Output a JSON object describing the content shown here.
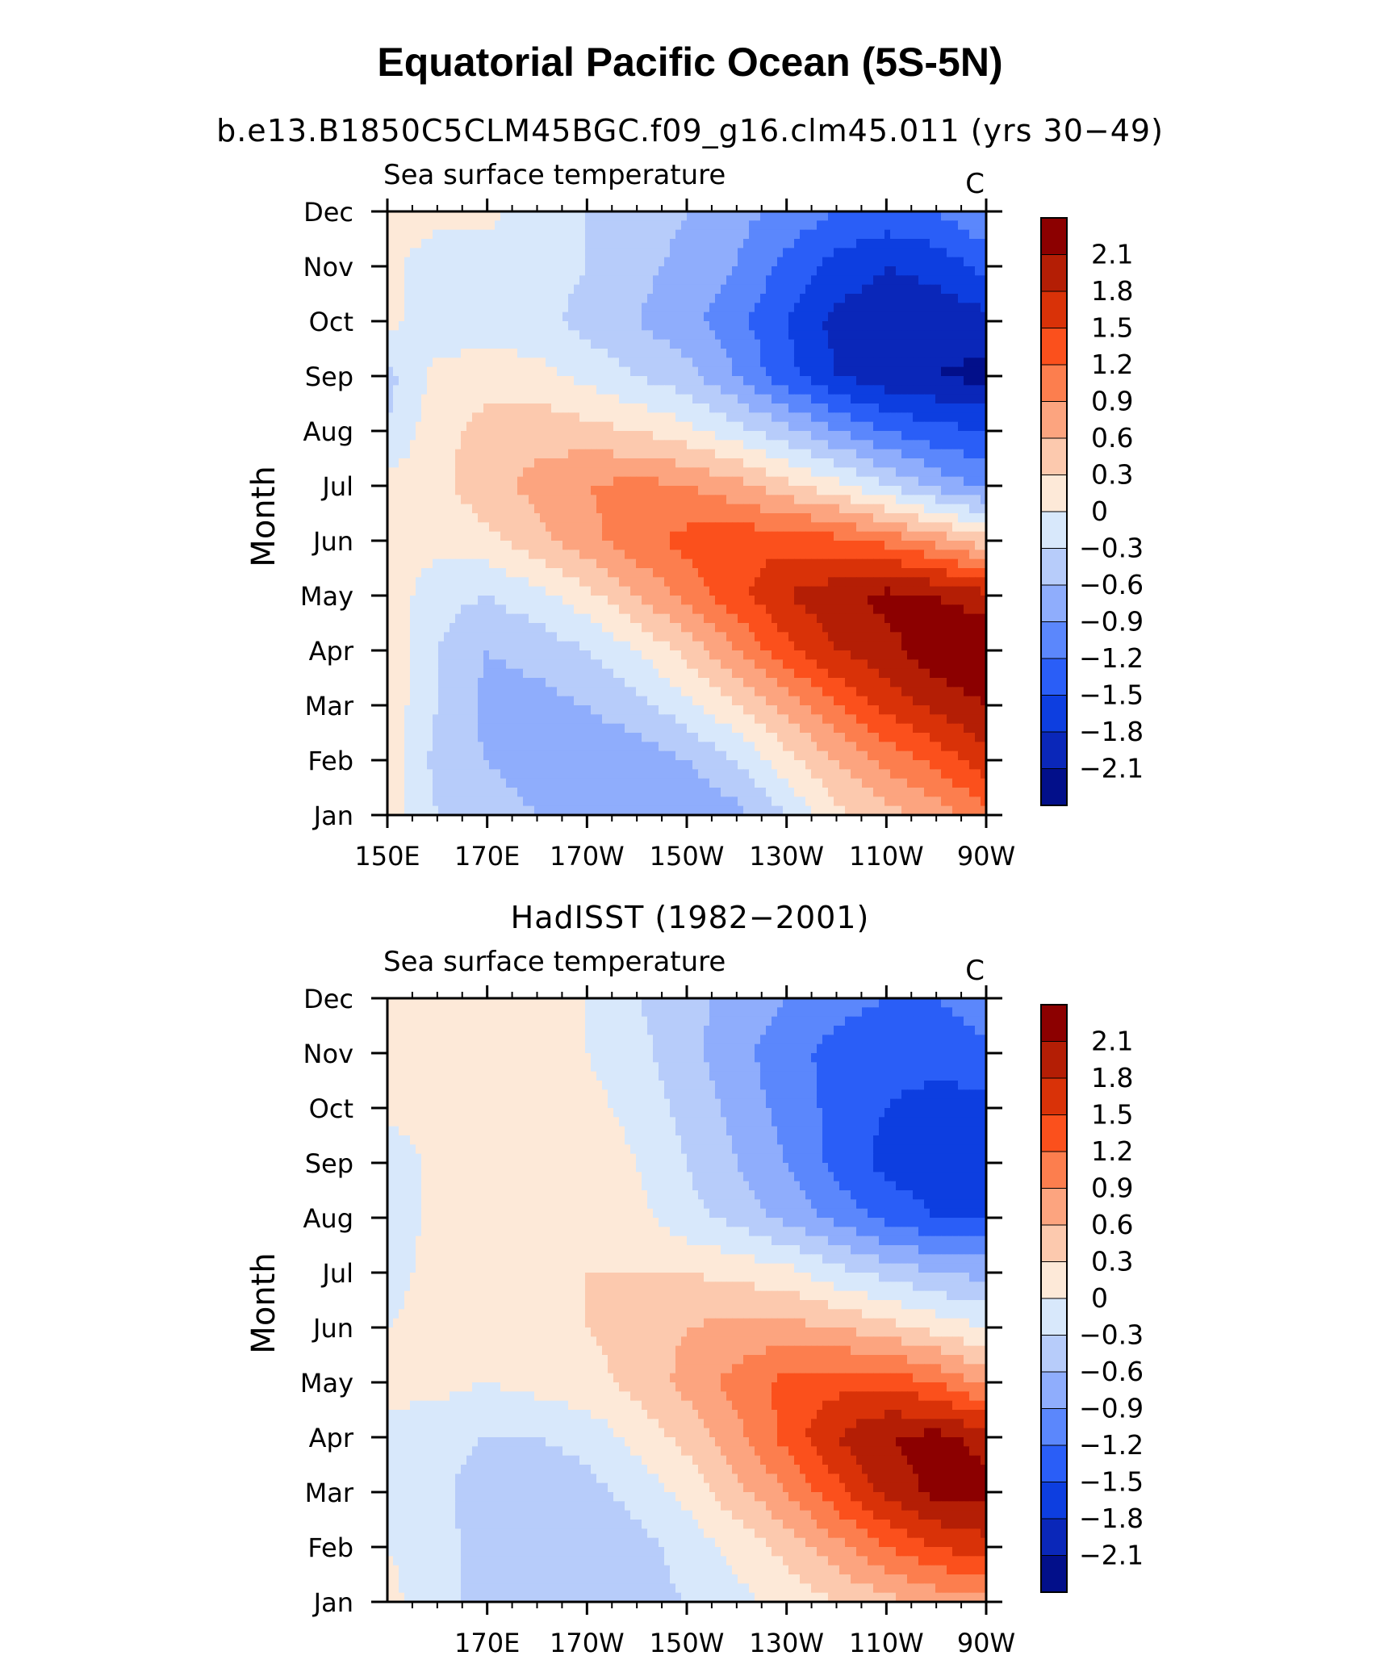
{
  "title": "Equatorial Pacific Ocean (5S-5N)",
  "chart_data": [
    {
      "type": "heatmap",
      "title": "b.e13.B1850C5CLM45BGC.f09_g16.clm45.011 (yrs 30−49)",
      "left_string": "Sea surface temperature",
      "right_string": "C",
      "xlabel": "",
      "ylabel": "Month",
      "xlim": [
        150,
        270
      ],
      "x_ticks": [
        150,
        170,
        190,
        210,
        230,
        250,
        270
      ],
      "x_tick_labels": [
        "150E",
        "170E",
        "170W",
        "150W",
        "130W",
        "110W",
        "90W"
      ],
      "months": [
        "Jan",
        "Feb",
        "Mar",
        "Apr",
        "May",
        "Jun",
        "Jul",
        "Aug",
        "Sep",
        "Oct",
        "Nov",
        "Dec"
      ],
      "lon": [
        150,
        160,
        170,
        180,
        190,
        200,
        210,
        220,
        230,
        240,
        250,
        260,
        270
      ],
      "values": [
        [
          0.2,
          -0.3,
          -0.5,
          -0.6,
          -0.6,
          -0.6,
          -0.9,
          -0.7,
          -0.3,
          0.2,
          0.5,
          0.7,
          1.1
        ],
        [
          0.2,
          -0.4,
          -0.6,
          -0.7,
          -0.8,
          -0.8,
          -0.6,
          -0.3,
          0.2,
          0.6,
          1.0,
          1.3,
          1.7
        ],
        [
          0.2,
          -0.3,
          -0.7,
          -0.7,
          -0.6,
          -0.4,
          -0.1,
          0.3,
          0.7,
          1.2,
          1.6,
          1.9,
          2.1
        ],
        [
          0.2,
          -0.3,
          -0.6,
          -0.5,
          -0.3,
          0.0,
          0.4,
          0.9,
          1.4,
          1.8,
          2.0,
          2.3,
          2.5
        ],
        [
          0.2,
          -0.2,
          -0.3,
          -0.1,
          0.2,
          0.6,
          1.0,
          1.4,
          1.8,
          2.0,
          2.2,
          2.1,
          1.9
        ],
        [
          0.1,
          0.1,
          0.2,
          0.5,
          0.8,
          1.1,
          1.3,
          1.4,
          1.4,
          1.3,
          1.1,
          0.8,
          0.4
        ],
        [
          0.1,
          0.2,
          0.5,
          0.7,
          0.9,
          1.0,
          0.9,
          0.7,
          0.4,
          0.1,
          -0.3,
          -0.7,
          -1.0
        ],
        [
          -0.3,
          0.2,
          0.4,
          0.5,
          0.4,
          0.3,
          0.1,
          -0.2,
          -0.5,
          -0.9,
          -1.2,
          -1.4,
          -1.5
        ],
        [
          -0.4,
          0.1,
          0.2,
          0.1,
          -0.1,
          -0.3,
          -0.5,
          -0.9,
          -1.4,
          -1.8,
          -2.0,
          -2.1,
          -2.2
        ],
        [
          0.1,
          -0.2,
          -0.2,
          -0.2,
          -0.4,
          -0.6,
          -0.8,
          -1.1,
          -1.5,
          -1.9,
          -2.0,
          -2.0,
          -1.9
        ],
        [
          0.1,
          -0.2,
          -0.2,
          -0.2,
          -0.3,
          -0.5,
          -0.7,
          -0.9,
          -1.3,
          -1.6,
          -1.8,
          -1.7,
          -1.4
        ],
        [
          0.2,
          0.1,
          0.1,
          -0.2,
          -0.3,
          -0.4,
          -0.6,
          -0.8,
          -1.0,
          -1.2,
          -1.3,
          -1.2,
          -0.9
        ]
      ]
    },
    {
      "type": "heatmap",
      "title": "HadISST (1982−2001)",
      "left_string": "Sea surface temperature",
      "right_string": "C",
      "xlabel": "",
      "ylabel": "Month",
      "xlim": [
        150,
        270
      ],
      "x_ticks": [
        170,
        190,
        210,
        230,
        250,
        270
      ],
      "x_tick_labels": [
        "170E",
        "170W",
        "150W",
        "130W",
        "110W",
        "90W"
      ],
      "months": [
        "Jan",
        "Feb",
        "Mar",
        "Apr",
        "May",
        "Jun",
        "Jul",
        "Aug",
        "Sep",
        "Oct",
        "Nov",
        "Dec"
      ],
      "lon": [
        150,
        160,
        170,
        180,
        190,
        200,
        210,
        220,
        230,
        240,
        250,
        260,
        270
      ],
      "values": [
        [
          0.1,
          -0.2,
          -0.4,
          -0.5,
          -0.5,
          -0.4,
          -0.3,
          -0.1,
          0.1,
          0.3,
          0.5,
          0.7,
          0.8
        ],
        [
          0.0,
          -0.2,
          -0.4,
          -0.5,
          -0.5,
          -0.4,
          -0.2,
          0.1,
          0.4,
          0.8,
          1.2,
          1.5,
          1.7
        ],
        [
          -0.1,
          -0.2,
          -0.5,
          -0.5,
          -0.4,
          -0.2,
          0.1,
          0.5,
          0.9,
          1.4,
          1.9,
          2.2,
          2.2
        ],
        [
          -0.1,
          -0.2,
          -0.3,
          -0.3,
          -0.2,
          0.1,
          0.4,
          0.8,
          1.3,
          1.8,
          2.1,
          2.2,
          2.0
        ],
        [
          0.1,
          0.1,
          0.0,
          0.1,
          0.2,
          0.4,
          0.7,
          1.0,
          1.3,
          1.4,
          1.4,
          1.2,
          0.8
        ],
        [
          0.0,
          0.1,
          0.2,
          0.2,
          0.3,
          0.4,
          0.6,
          0.7,
          0.7,
          0.6,
          0.4,
          0.2,
          0.0
        ],
        [
          -0.1,
          0.1,
          0.2,
          0.2,
          0.3,
          0.3,
          0.3,
          0.2,
          0.1,
          -0.2,
          -0.4,
          -0.6,
          -0.7
        ],
        [
          -0.2,
          0.1,
          0.2,
          0.2,
          0.2,
          0.1,
          -0.2,
          -0.4,
          -0.7,
          -1.0,
          -1.3,
          -1.5,
          -1.5
        ],
        [
          -0.2,
          0.1,
          0.3,
          0.3,
          0.2,
          0.0,
          -0.3,
          -0.6,
          -0.9,
          -1.3,
          -1.6,
          -1.7,
          -1.7
        ],
        [
          0.1,
          0.1,
          0.2,
          0.2,
          0.1,
          -0.1,
          -0.4,
          -0.7,
          -1.0,
          -1.3,
          -1.5,
          -1.6,
          -1.6
        ],
        [
          0.1,
          0.2,
          0.2,
          0.1,
          0.0,
          -0.2,
          -0.5,
          -0.8,
          -1.1,
          -1.3,
          -1.4,
          -1.4,
          -1.3
        ],
        [
          0.1,
          0.1,
          0.2,
          0.1,
          0.0,
          -0.3,
          -0.5,
          -0.7,
          -0.9,
          -1.1,
          -1.2,
          -1.2,
          -1.0
        ]
      ]
    }
  ],
  "colorbar": {
    "labels": [
      "2.1",
      "1.8",
      "1.5",
      "1.2",
      "0.9",
      "0.6",
      "0.3",
      "0",
      "−0.3",
      "−0.6",
      "−0.9",
      "−1.2",
      "−1.5",
      "−1.8",
      "−2.1"
    ],
    "levels": [
      2.1,
      1.8,
      1.5,
      1.2,
      0.9,
      0.6,
      0.3,
      0,
      -0.3,
      -0.6,
      -0.9,
      -1.2,
      -1.5,
      -1.8,
      -2.1
    ],
    "colors": [
      "#8c0000",
      "#b41e05",
      "#d93208",
      "#fb501c",
      "#fc7e4e",
      "#fca47f",
      "#fcc9ae",
      "#fde9d8",
      "#d8e8fb",
      "#b7ccfa",
      "#8fadfc",
      "#5b87fc",
      "#2a5ef7",
      "#0d3ee0",
      "#0a27b9",
      "#020f8a"
    ]
  }
}
